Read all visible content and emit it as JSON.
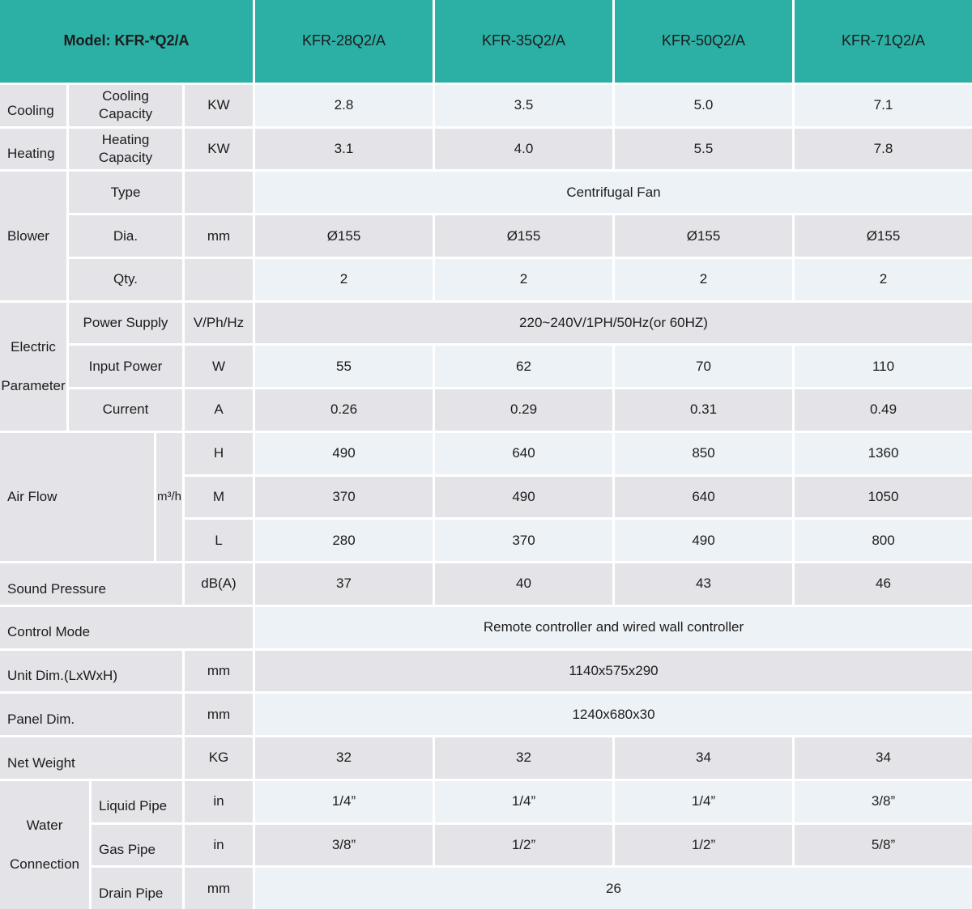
{
  "table": {
    "header": {
      "model_label": "Model: KFR-*Q2/A",
      "models": [
        "KFR-28Q2/A",
        "KFR-35Q2/A",
        "KFR-50Q2/A",
        "KFR-71Q2/A"
      ]
    },
    "cooling": {
      "group": "Cooling",
      "label": "Cooling Capacity",
      "unit": "KW",
      "values": [
        "2.8",
        "3.5",
        "5.0",
        "7.1"
      ]
    },
    "heating": {
      "group": "Heating",
      "label": "Heating Capacity",
      "unit": "KW",
      "values": [
        "3.1",
        "4.0",
        "5.5",
        "7.8"
      ]
    },
    "blower": {
      "group": "Blower",
      "type": {
        "label": "Type",
        "value": "Centrifugal Fan"
      },
      "dia": {
        "label": "Dia.",
        "unit": "mm",
        "values": [
          "Ø155",
          "Ø155",
          "Ø155",
          "Ø155"
        ]
      },
      "qty": {
        "label": "Qty.",
        "values": [
          "2",
          "2",
          "2",
          "2"
        ]
      }
    },
    "electric": {
      "group_line1": "Electric",
      "group_line2": "Parameter",
      "power_supply": {
        "label": "Power Supply",
        "unit": "V/Ph/Hz",
        "value": "220~240V/1PH/50Hz(or 60HZ)"
      },
      "input_power": {
        "label": "Input Power",
        "unit": "W",
        "values": [
          "55",
          "62",
          "70",
          "110"
        ]
      },
      "current": {
        "label": "Current",
        "unit": "A",
        "values": [
          "0.26",
          "0.29",
          "0.31",
          "0.49"
        ]
      }
    },
    "air_flow": {
      "group": "Air Flow",
      "unit": "m³/h",
      "high": {
        "label": "H",
        "values": [
          "490",
          "640",
          "850",
          "1360"
        ]
      },
      "mid": {
        "label": "M",
        "values": [
          "370",
          "490",
          "640",
          "1050"
        ]
      },
      "low": {
        "label": "L",
        "values": [
          "280",
          "370",
          "490",
          "800"
        ]
      }
    },
    "sound_pressure": {
      "label": "Sound Pressure",
      "unit": "dB(A)",
      "values": [
        "37",
        "40",
        "43",
        "46"
      ]
    },
    "control_mode": {
      "label": "Control Mode",
      "value": "Remote controller and wired wall controller"
    },
    "unit_dim": {
      "label": "Unit Dim.(LxWxH)",
      "unit": "mm",
      "value": "1140x575x290"
    },
    "panel_dim": {
      "label": "Panel Dim.",
      "unit": "mm",
      "value": "1240x680x30"
    },
    "net_weight": {
      "label": "Net Weight",
      "unit": "KG",
      "values": [
        "32",
        "32",
        "34",
        "34"
      ]
    },
    "water": {
      "group_line1": "Water",
      "group_line2": "Connection",
      "liquid_pipe": {
        "label": "Liquid Pipe",
        "unit": "in",
        "values": [
          "1/4”",
          "1/4”",
          "1/4”",
          "3/8”"
        ]
      },
      "gas_pipe": {
        "label": "Gas Pipe",
        "unit": "in",
        "values": [
          "3/8”",
          "1/2”",
          "1/2”",
          "5/8”"
        ]
      },
      "drain_pipe": {
        "label": "Drain Pipe",
        "unit": "mm",
        "value": "26"
      }
    }
  },
  "colors": {
    "header_teal": "#2CAFA4",
    "cell_gray": "#E4E4E8",
    "cell_blue": "#EDF2F6",
    "background": "#FFFFFF"
  }
}
